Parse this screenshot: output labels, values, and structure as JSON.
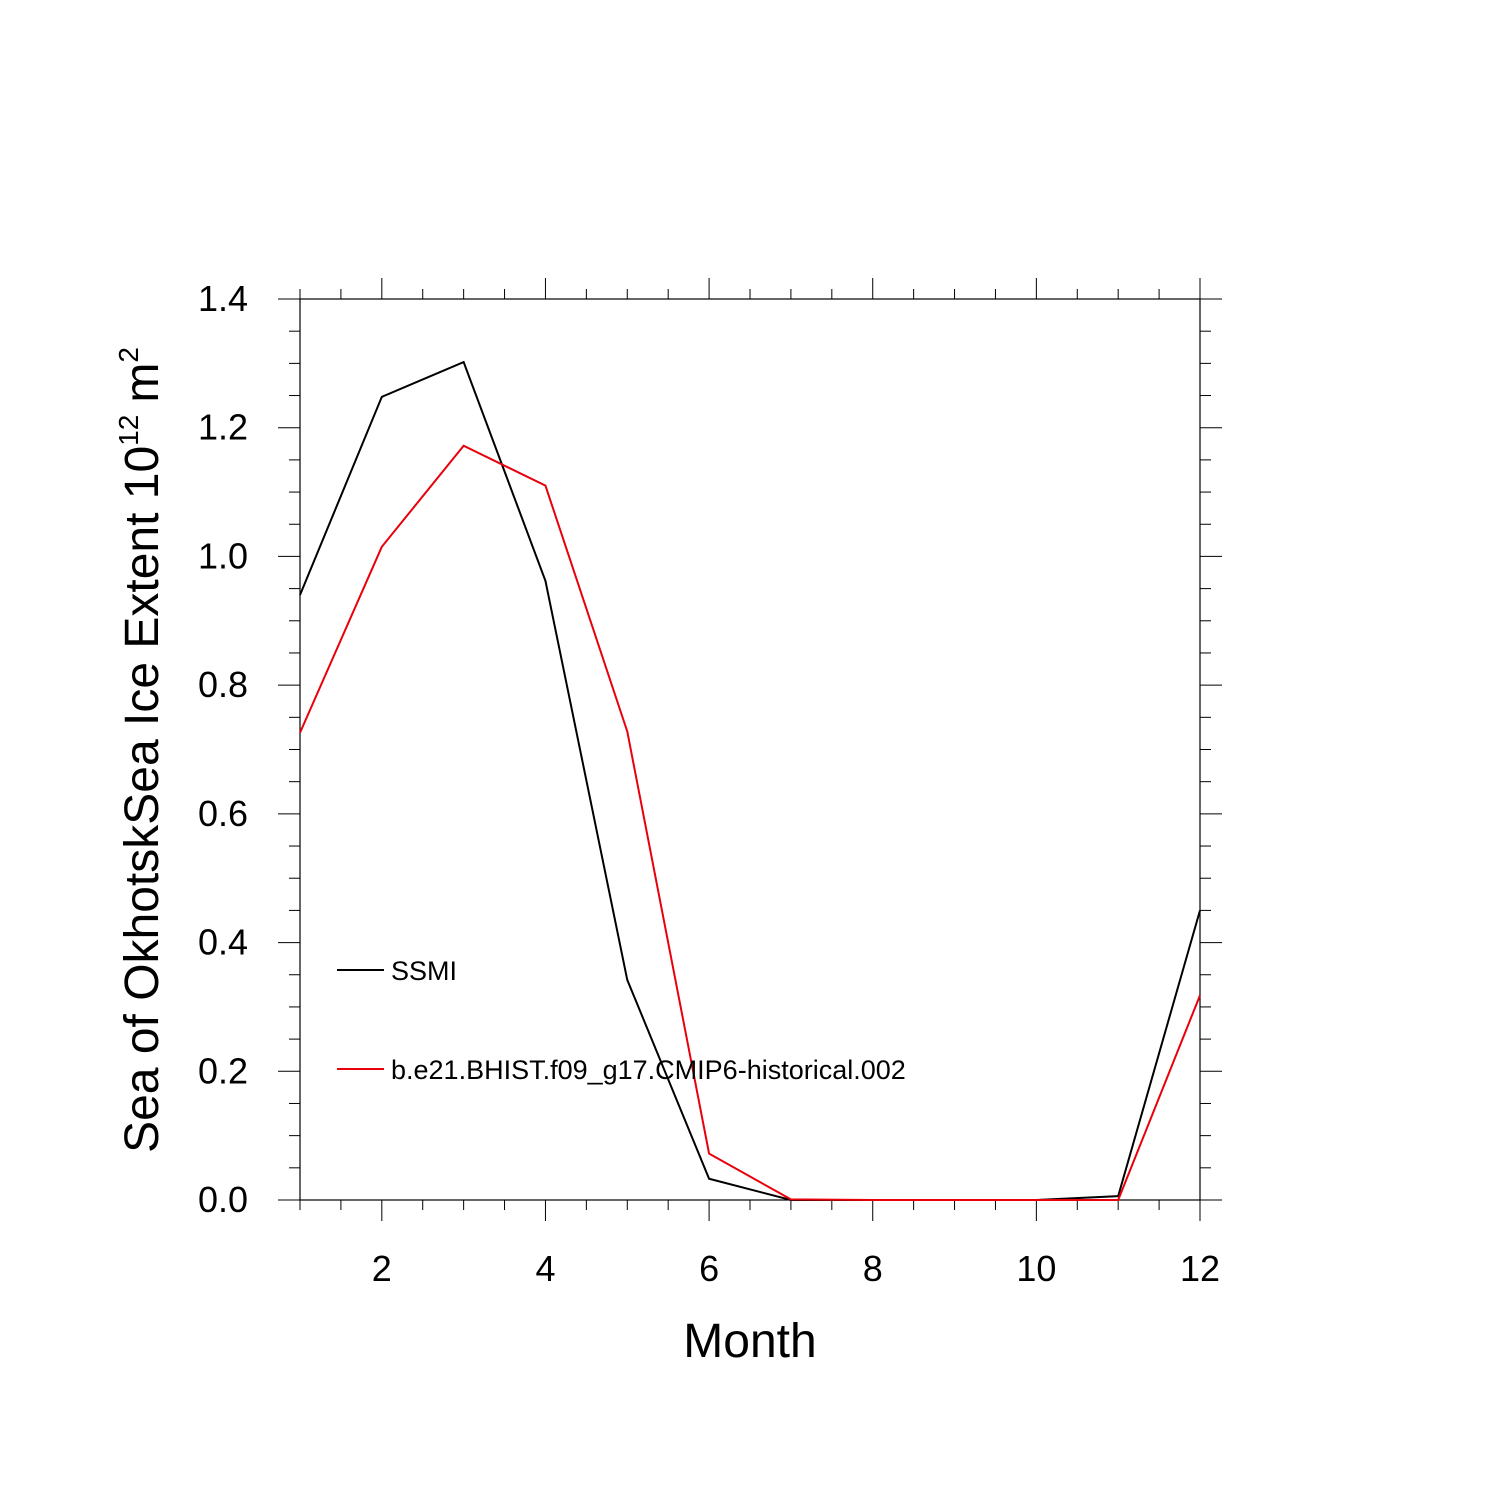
{
  "chart_data": {
    "type": "line",
    "title": "",
    "xlabel": "Month",
    "ylabel": {
      "prefix": "Sea of OkhotskSea Ice Extent 10",
      "exponent": "12",
      "unit": "m",
      "unit_exponent": "2"
    },
    "xlim": [
      1,
      12
    ],
    "ylim": [
      0,
      1.4
    ],
    "xticks": [
      2,
      4,
      6,
      8,
      10,
      12
    ],
    "yticks": [
      "0.0",
      "0.2",
      "0.4",
      "0.6",
      "0.8",
      "1.0",
      "1.2",
      "1.4"
    ],
    "grid": false,
    "legend_position": "lower-left",
    "x": [
      1,
      2,
      3,
      4,
      5,
      6,
      7,
      8,
      9,
      10,
      11,
      12
    ],
    "series": [
      {
        "name": "SSMI",
        "color": "#000000",
        "values": [
          0.94,
          1.248,
          1.302,
          0.962,
          0.342,
          0.033,
          0.0,
          0.0,
          0.0,
          0.0,
          0.006,
          0.45
        ]
      },
      {
        "name": "b.e21.BHIST.f09_g17.CMIP6-historical.002",
        "color": "#e8000b",
        "values": [
          0.726,
          1.015,
          1.172,
          1.11,
          0.728,
          0.072,
          0.001,
          0.0,
          0.0,
          0.0,
          0.0,
          0.318
        ]
      }
    ]
  }
}
